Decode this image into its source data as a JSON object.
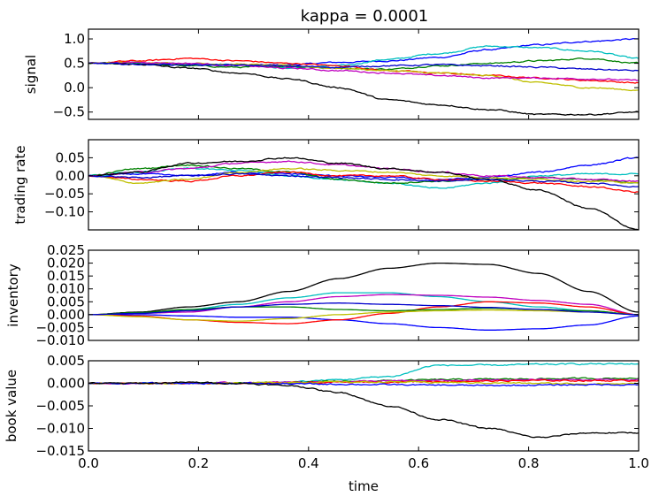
{
  "title": "kappa = 0.0001",
  "chart_data": [
    {
      "type": "line",
      "ylabel": "signal",
      "ylim": [
        -0.65,
        1.2
      ],
      "xlim": [
        0,
        1
      ],
      "yticks": [
        -0.5,
        0.0,
        0.5,
        1.0
      ],
      "ytick_labels": [
        "−0.5",
        "0.0",
        "0.5",
        "1.0"
      ],
      "grid": false,
      "series": [
        {
          "color": "#0000ff",
          "values": [
            0.5,
            0.49,
            0.48,
            0.46,
            0.47,
            0.52,
            0.55,
            0.62,
            0.78,
            0.88,
            0.95,
            1.0
          ]
        },
        {
          "color": "#00bfbf",
          "values": [
            0.5,
            0.5,
            0.49,
            0.48,
            0.4,
            0.45,
            0.58,
            0.7,
            0.85,
            0.82,
            0.75,
            0.6
          ]
        },
        {
          "color": "#008000",
          "values": [
            0.5,
            0.48,
            0.45,
            0.42,
            0.44,
            0.4,
            0.38,
            0.45,
            0.5,
            0.55,
            0.6,
            0.5
          ]
        },
        {
          "color": "#ff0000",
          "values": [
            0.5,
            0.55,
            0.6,
            0.55,
            0.5,
            0.45,
            0.35,
            0.3,
            0.25,
            0.2,
            0.15,
            0.1
          ]
        },
        {
          "color": "#bfbf00",
          "values": [
            0.5,
            0.52,
            0.5,
            0.48,
            0.45,
            0.4,
            0.35,
            0.3,
            0.25,
            0.1,
            0.0,
            -0.05
          ]
        },
        {
          "color": "#bf00bf",
          "values": [
            0.5,
            0.52,
            0.5,
            0.45,
            0.4,
            0.35,
            0.3,
            0.25,
            0.2,
            0.2,
            0.18,
            0.15
          ]
        },
        {
          "color": "#000000",
          "values": [
            0.5,
            0.48,
            0.4,
            0.3,
            0.18,
            0.0,
            -0.25,
            -0.35,
            -0.45,
            -0.55,
            -0.55,
            -0.5
          ]
        },
        {
          "color": "#0000cc",
          "values": [
            0.5,
            0.48,
            0.47,
            0.46,
            0.44,
            0.42,
            0.45,
            0.47,
            0.45,
            0.42,
            0.38,
            0.35
          ]
        }
      ]
    },
    {
      "type": "line",
      "ylabel": "trading rate",
      "ylim": [
        -0.15,
        0.1
      ],
      "xlim": [
        0,
        1
      ],
      "yticks": [
        -0.15,
        -0.1,
        -0.05,
        0.0,
        0.05
      ],
      "ytick_labels": [
        "",
        "−0.10",
        "−0.05",
        "0.00",
        "0.05"
      ],
      "grid": false,
      "series": [
        {
          "color": "#0000ff",
          "values": [
            0.0,
            0.005,
            0.0,
            0.01,
            0.005,
            0.0,
            -0.005,
            -0.01,
            -0.005,
            0.01,
            0.03,
            0.05
          ]
        },
        {
          "color": "#00bfbf",
          "values": [
            0.0,
            0.01,
            0.02,
            0.015,
            0.0,
            -0.01,
            -0.02,
            -0.035,
            -0.02,
            0.0,
            0.005,
            0.005
          ]
        },
        {
          "color": "#008000",
          "values": [
            0.0,
            0.02,
            0.03,
            0.02,
            0.01,
            -0.01,
            -0.02,
            -0.015,
            -0.01,
            -0.005,
            -0.01,
            -0.02
          ]
        },
        {
          "color": "#ff0000",
          "values": [
            0.0,
            -0.01,
            -0.015,
            0.0,
            0.01,
            0.0,
            0.0,
            -0.01,
            -0.015,
            -0.02,
            -0.03,
            -0.045
          ]
        },
        {
          "color": "#bfbf00",
          "values": [
            0.0,
            -0.02,
            -0.01,
            0.01,
            0.02,
            0.015,
            0.01,
            0.0,
            -0.005,
            -0.01,
            -0.015,
            -0.02
          ]
        },
        {
          "color": "#bf00bf",
          "values": [
            0.0,
            0.01,
            0.02,
            0.035,
            0.04,
            0.03,
            0.02,
            0.01,
            0.0,
            -0.005,
            -0.01,
            -0.015
          ]
        },
        {
          "color": "#000000",
          "values": [
            0.0,
            0.01,
            0.035,
            0.04,
            0.05,
            0.035,
            0.02,
            0.01,
            -0.01,
            -0.04,
            -0.09,
            -0.15
          ]
        },
        {
          "color": "#0000cc",
          "values": [
            0.0,
            -0.005,
            0.0,
            0.005,
            0.0,
            -0.005,
            -0.01,
            -0.015,
            -0.01,
            -0.015,
            -0.02,
            -0.03
          ]
        }
      ]
    },
    {
      "type": "line",
      "ylabel": "inventory",
      "ylim": [
        -0.01,
        0.025
      ],
      "xlim": [
        0,
        1
      ],
      "yticks": [
        -0.01,
        -0.005,
        0.0,
        0.005,
        0.01,
        0.015,
        0.02,
        0.025
      ],
      "ytick_labels": [
        "−0.010",
        "−0.005",
        "0.000",
        "0.005",
        "0.010",
        "0.015",
        "0.020",
        "0.025"
      ],
      "grid": false,
      "series": [
        {
          "color": "#000000",
          "values": [
            0.0,
            0.001,
            0.003,
            0.005,
            0.009,
            0.014,
            0.018,
            0.02,
            0.0195,
            0.016,
            0.009,
            0.001
          ]
        },
        {
          "color": "#00bfbf",
          "values": [
            0.0,
            0.0005,
            0.002,
            0.004,
            0.0065,
            0.0085,
            0.0085,
            0.007,
            0.005,
            0.003,
            0.0015,
            0.0
          ]
        },
        {
          "color": "#bf00bf",
          "values": [
            0.0,
            0.0005,
            0.001,
            0.003,
            0.005,
            0.007,
            0.0078,
            0.0075,
            0.0068,
            0.0055,
            0.004,
            0.0
          ]
        },
        {
          "color": "#0000ff",
          "values": [
            0.0,
            0.0,
            -0.0005,
            -0.001,
            -0.001,
            -0.002,
            -0.0035,
            -0.005,
            -0.006,
            -0.0055,
            -0.004,
            -0.0005
          ]
        },
        {
          "color": "#ff0000",
          "values": [
            0.0,
            -0.0005,
            -0.002,
            -0.003,
            -0.0035,
            -0.002,
            0.0005,
            0.003,
            0.005,
            0.0045,
            0.003,
            0.0
          ]
        },
        {
          "color": "#008000",
          "values": [
            0.0,
            0.0008,
            0.002,
            0.003,
            0.003,
            0.002,
            0.0015,
            0.002,
            0.0025,
            0.002,
            0.0015,
            0.0
          ]
        },
        {
          "color": "#bfbf00",
          "values": [
            0.0,
            -0.0008,
            -0.002,
            -0.0025,
            -0.0015,
            0.0,
            0.001,
            0.0015,
            0.0018,
            0.0015,
            0.001,
            0.0
          ]
        },
        {
          "color": "#0000cc",
          "values": [
            0.0,
            0.0005,
            0.0015,
            0.003,
            0.004,
            0.0045,
            0.004,
            0.0035,
            0.0028,
            0.002,
            0.001,
            0.0
          ]
        }
      ]
    },
    {
      "type": "line",
      "ylabel": "book value",
      "ylim": [
        -0.015,
        0.005
      ],
      "xlim": [
        0,
        1
      ],
      "xlabel": "time",
      "yticks": [
        -0.015,
        -0.01,
        -0.005,
        0.0,
        0.005
      ],
      "ytick_labels": [
        "−0.015",
        "−0.010",
        "−0.005",
        "0.000",
        "0.005"
      ],
      "xticks": [
        0.0,
        0.2,
        0.4,
        0.6,
        0.8,
        1.0
      ],
      "xtick_labels": [
        "0.0",
        "0.2",
        "0.4",
        "0.6",
        "0.8",
        "1.0"
      ],
      "grid": false,
      "series": [
        {
          "color": "#00bfbf",
          "values": [
            0.0,
            0.0,
            0.0,
            0.0,
            0.0003,
            0.0008,
            0.0015,
            0.004,
            0.004,
            0.0042,
            0.0043,
            0.0043
          ]
        },
        {
          "color": "#008000",
          "values": [
            0.0,
            0.0,
            0.0,
            0.0001,
            0.0002,
            0.0004,
            0.0006,
            0.0008,
            0.0009,
            0.001,
            0.0011,
            0.0011
          ]
        },
        {
          "color": "#bf00bf",
          "values": [
            0.0,
            0.0,
            0.0,
            0.0001,
            0.0002,
            0.0004,
            0.0005,
            0.0006,
            0.0007,
            0.0008,
            0.0008,
            0.0008
          ]
        },
        {
          "color": "#ff0000",
          "values": [
            0.0,
            0.0,
            0.0,
            0.0,
            0.0001,
            0.0002,
            0.0003,
            0.0004,
            0.0005,
            0.0006,
            0.0006,
            0.0006
          ]
        },
        {
          "color": "#bfbf00",
          "values": [
            0.0,
            0.0,
            0.0,
            0.0001,
            0.0002,
            0.0003,
            0.0003,
            0.0002,
            0.0001,
            0.0,
            -0.0001,
            -0.0001
          ]
        },
        {
          "color": "#0000ff",
          "values": [
            0.0,
            0.0,
            0.0,
            0.0,
            -0.0001,
            -0.0002,
            -0.0003,
            -0.0004,
            -0.0005,
            -0.0004,
            -0.0003,
            -0.0003
          ]
        },
        {
          "color": "#000000",
          "values": [
            0.0,
            0.0,
            0.0002,
            0.0,
            -0.0005,
            -0.002,
            -0.005,
            -0.008,
            -0.01,
            -0.012,
            -0.011,
            -0.011
          ]
        }
      ]
    }
  ]
}
